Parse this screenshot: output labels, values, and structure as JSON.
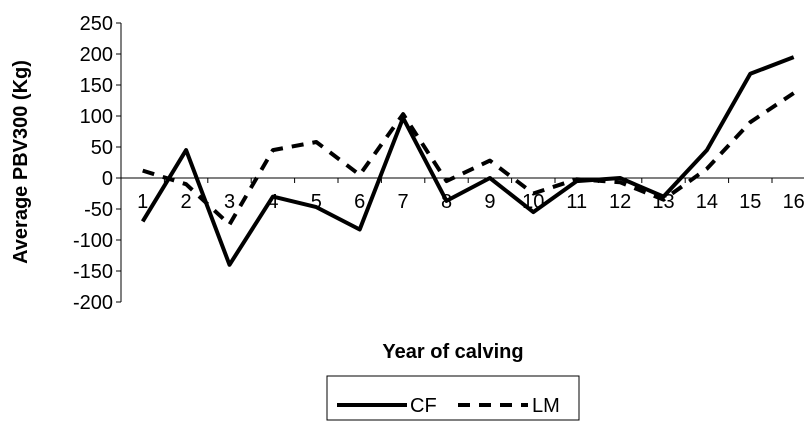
{
  "chart_data": {
    "type": "line",
    "title": "",
    "xlabel": "Year of calving",
    "ylabel": "Average PBV300 (Kg)",
    "categories": [
      "1",
      "2",
      "3",
      "4",
      "5",
      "6",
      "7",
      "8",
      "9",
      "10",
      "11",
      "12",
      "13",
      "14",
      "15",
      "16"
    ],
    "yticks": [
      "250",
      "200",
      "150",
      "100",
      "50",
      "0",
      "-50",
      "-100",
      "-150",
      "-200"
    ],
    "ylim": [
      -200,
      250
    ],
    "grid": false,
    "legend_position": "bottom",
    "series": [
      {
        "name": "CF",
        "style": "solid",
        "color": "#000000",
        "values": [
          -70,
          45,
          -140,
          -30,
          -47,
          -83,
          97,
          -37,
          0,
          -55,
          -5,
          0,
          -30,
          45,
          168,
          195
        ]
      },
      {
        "name": "LM",
        "style": "dashed",
        "color": "#000000",
        "values": [
          12,
          -10,
          -75,
          45,
          58,
          5,
          103,
          -5,
          28,
          -25,
          -2,
          -7,
          -35,
          15,
          90,
          137
        ]
      }
    ]
  }
}
